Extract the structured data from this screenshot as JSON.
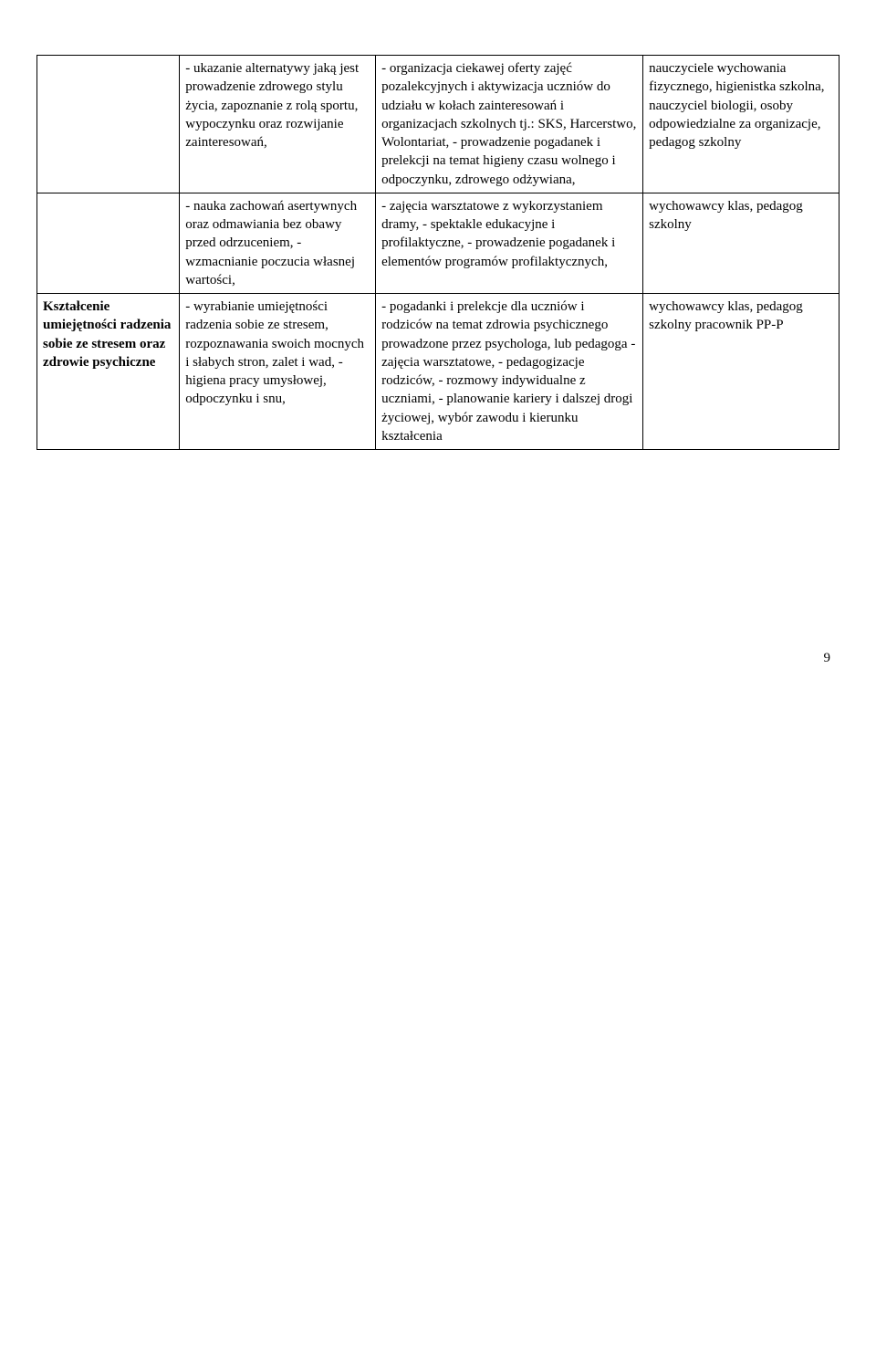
{
  "table": {
    "rows": [
      {
        "c1": "",
        "c2": "- ukazanie alternatywy jaką jest prowadzenie zdrowego stylu życia, zapoznanie z rolą sportu, wypoczynku oraz  rozwijanie zainteresowań,",
        "c3": "- organizacja ciekawej oferty zajęć pozalekcyjnych i aktywizacja uczniów do udziału w kołach zainteresowań i organizacjach szkolnych tj.: SKS, Harcerstwo, Wolontariat, - prowadzenie pogadanek i prelekcji na temat higieny czasu wolnego i odpoczynku, zdrowego odżywiana,",
        "c4": "nauczyciele wychowania fizycznego, higienistka szkolna, nauczyciel biologii, osoby odpowiedzialne za organizacje, pedagog szkolny"
      },
      {
        "c1": "",
        "c2": "- nauka zachowań asertywnych oraz odmawiania  bez obawy przed odrzuceniem, - wzmacnianie poczucia własnej wartości,",
        "c3": "- zajęcia warsztatowe z wykorzystaniem dramy, - spektakle edukacyjne i profilaktyczne, - prowadzenie pogadanek i elementów programów profilaktycznych,",
        "c4": "wychowawcy klas,  pedagog szkolny"
      },
      {
        "c1": "Kształcenie umiejętności radzenia sobie ze stresem oraz zdrowie psychiczne",
        "c1_bold": true,
        "c2": "- wyrabianie umiejętności radzenia sobie ze stresem, rozpoznawania swoich mocnych i słabych stron, zalet i wad, -higiena pracy umysłowej, odpoczynku i snu,",
        "c3": "-  pogadanki i prelekcje dla uczniów i rodziców na temat zdrowia psychicznego prowadzone przez psychologa, lub pedagoga - zajęcia warsztatowe, - pedagogizacje rodziców, - rozmowy indywidualne z uczniami, - planowanie kariery i dalszej drogi życiowej, wybór zawodu i kierunku kształcenia",
        "c4": "wychowawcy klas, pedagog szkolny pracownik PP-P"
      }
    ]
  },
  "page_number": "9"
}
